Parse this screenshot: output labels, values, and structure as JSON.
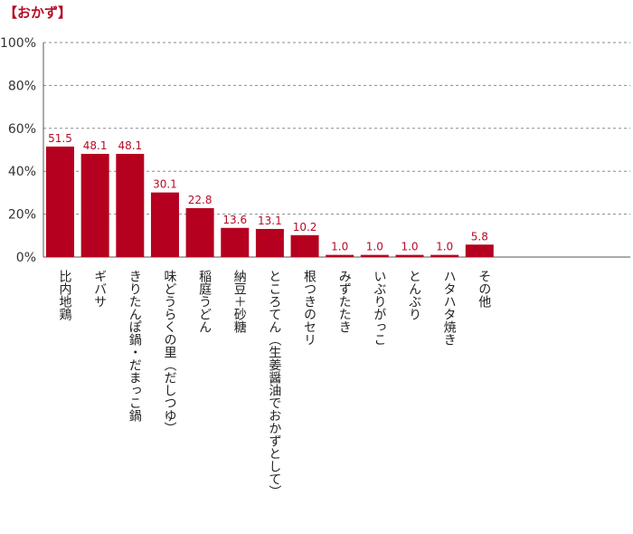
{
  "chart_data": {
    "type": "bar",
    "title": "【おかず】",
    "xlabel": "",
    "ylabel": "",
    "ylim": [
      0,
      100
    ],
    "yticks": [
      "0%",
      "20%",
      "40%",
      "60%",
      "80%",
      "100%"
    ],
    "grid": true,
    "bar_color": "#b5001f",
    "label_color": "#b50c26",
    "categories": [
      "比内地鶏",
      "ギバサ",
      "きりたんぽ鍋・だまっこ鍋",
      "味どうらくの里（だしつゆ）",
      "稲庭うどん",
      "納豆＋砂糖",
      "ところてん（生姜醤油でおかずとして）",
      "根つきのセリ",
      "みずたたき",
      "いぶりがっこ",
      "とんぶり",
      "ハタハタ焼き",
      "その他"
    ],
    "values": [
      51.5,
      48.1,
      48.1,
      30.1,
      22.8,
      13.6,
      13.1,
      10.2,
      1.0,
      1.0,
      1.0,
      1.0,
      5.8
    ],
    "value_labels": [
      "51.5",
      "48.1",
      "48.1",
      "30.1",
      "22.8",
      "13.6",
      "13.1",
      "10.2",
      "1.0",
      "1.0",
      "1.0",
      "1.0",
      "5.8"
    ]
  }
}
